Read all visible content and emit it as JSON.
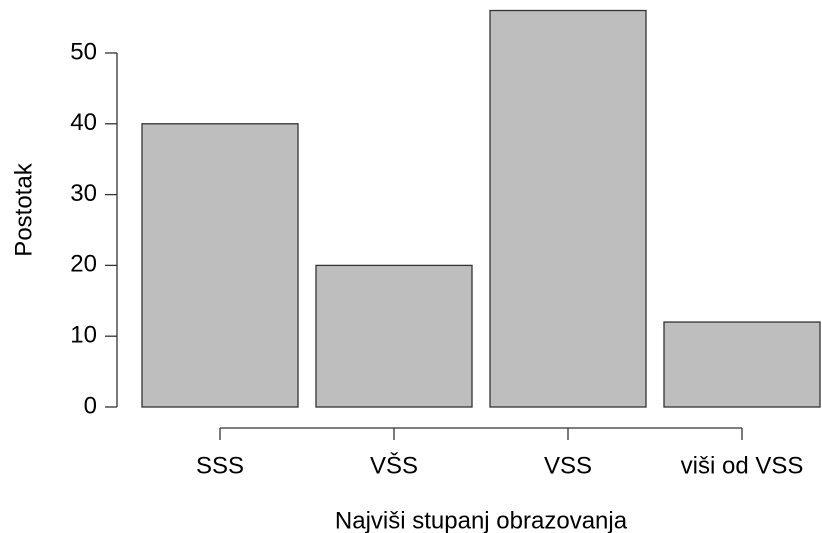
{
  "chart_data": {
    "type": "bar",
    "categories": [
      "SSS",
      "VŠS",
      "VSS",
      "viši od VSS"
    ],
    "values": [
      40,
      20,
      56,
      12
    ],
    "color": "#bebebe",
    "ylabel": "Postotak",
    "xlabel": "Najviši stupanj obrazovanja",
    "ylim": [
      0,
      56
    ],
    "yticks": [
      0,
      10,
      20,
      30,
      40,
      50
    ]
  }
}
